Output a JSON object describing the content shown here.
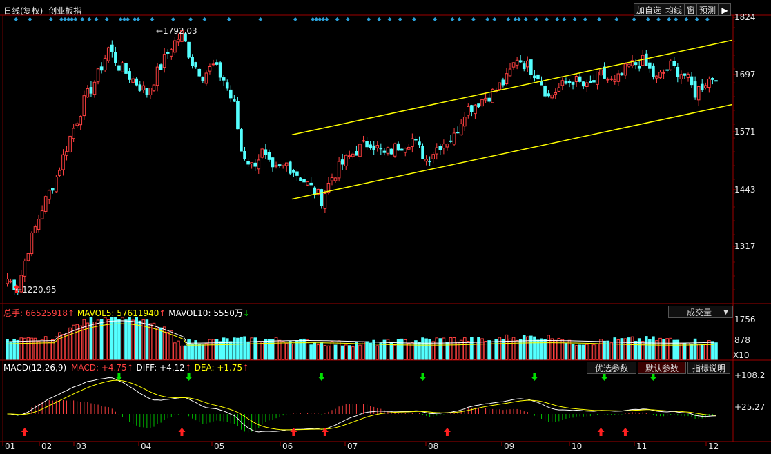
{
  "header": {
    "title": "日线(复权)",
    "index_name": "创业板指",
    "buttons": [
      "加自选",
      "均线",
      "窗",
      "预测"
    ]
  },
  "price_axis": {
    "ticks": [
      "1824",
      "1697",
      "1571",
      "1443",
      "1317"
    ]
  },
  "annotations": {
    "high": "1792.03",
    "low": "1220.95"
  },
  "volume": {
    "total_label": "总手:",
    "total_value": "66525918",
    "mavol5_label": "MAVOL5:",
    "mavol5_value": "57611940",
    "mavol10_label": "MAVOL10:",
    "mavol10_value": "5550万",
    "dropdown": "成交量",
    "ticks": [
      "1756",
      "878"
    ],
    "unit": "X10"
  },
  "macd": {
    "name": "MACD(12,26,9)",
    "macd_label": "MACD:",
    "macd_value": "+4.75",
    "diff_label": "DIFF:",
    "diff_value": "+4.12",
    "dea_label": "DEA:",
    "dea_value": "+1.75",
    "ticks": [
      "+108.2",
      "+25.27"
    ],
    "buttons": [
      "优选参数",
      "默认参数",
      "指标说明"
    ]
  },
  "chart_data": {
    "type": "candlestick",
    "months": [
      "01",
      "02",
      "03",
      "04",
      "05",
      "06",
      "07",
      "08",
      "09",
      "10",
      "11",
      "12"
    ],
    "price_ylim": [
      1200,
      1830
    ],
    "colors": {
      "up": "#ff4040",
      "down": "#54ffff",
      "channel": "#ffff00",
      "diff": "#ffffff",
      "dea": "#ffff00",
      "macd_up": "#ff4040",
      "macd_down": "#00c000"
    },
    "close_path": [
      [
        0,
        1240
      ],
      [
        3,
        1220
      ],
      [
        6,
        1310
      ],
      [
        10,
        1400
      ],
      [
        14,
        1470
      ],
      [
        18,
        1560
      ],
      [
        22,
        1640
      ],
      [
        26,
        1700
      ],
      [
        29,
        1760
      ],
      [
        32,
        1720
      ],
      [
        36,
        1690
      ],
      [
        40,
        1660
      ],
      [
        44,
        1720
      ],
      [
        47,
        1765
      ],
      [
        50,
        1792
      ],
      [
        53,
        1730
      ],
      [
        56,
        1700
      ],
      [
        59,
        1720
      ],
      [
        62,
        1690
      ],
      [
        65,
        1630
      ],
      [
        67,
        1530
      ],
      [
        70,
        1495
      ],
      [
        73,
        1525
      ],
      [
        76,
        1480
      ],
      [
        80,
        1500
      ],
      [
        84,
        1470
      ],
      [
        87,
        1445
      ],
      [
        90,
        1420
      ],
      [
        93,
        1470
      ],
      [
        96,
        1500
      ],
      [
        100,
        1530
      ],
      [
        104,
        1550
      ],
      [
        108,
        1520
      ],
      [
        112,
        1540
      ],
      [
        116,
        1555
      ],
      [
        120,
        1510
      ],
      [
        124,
        1545
      ],
      [
        128,
        1560
      ],
      [
        131,
        1620
      ],
      [
        135,
        1640
      ],
      [
        139,
        1660
      ],
      [
        143,
        1690
      ],
      [
        146,
        1740
      ],
      [
        149,
        1720
      ],
      [
        152,
        1700
      ],
      [
        155,
        1650
      ],
      [
        158,
        1670
      ],
      [
        162,
        1690
      ],
      [
        166,
        1670
      ],
      [
        170,
        1700
      ],
      [
        174,
        1680
      ],
      [
        178,
        1720
      ],
      [
        182,
        1730
      ],
      [
        186,
        1690
      ],
      [
        190,
        1720
      ],
      [
        194,
        1700
      ],
      [
        197,
        1660
      ],
      [
        200,
        1685
      ],
      [
        203,
        1700
      ]
    ]
  }
}
